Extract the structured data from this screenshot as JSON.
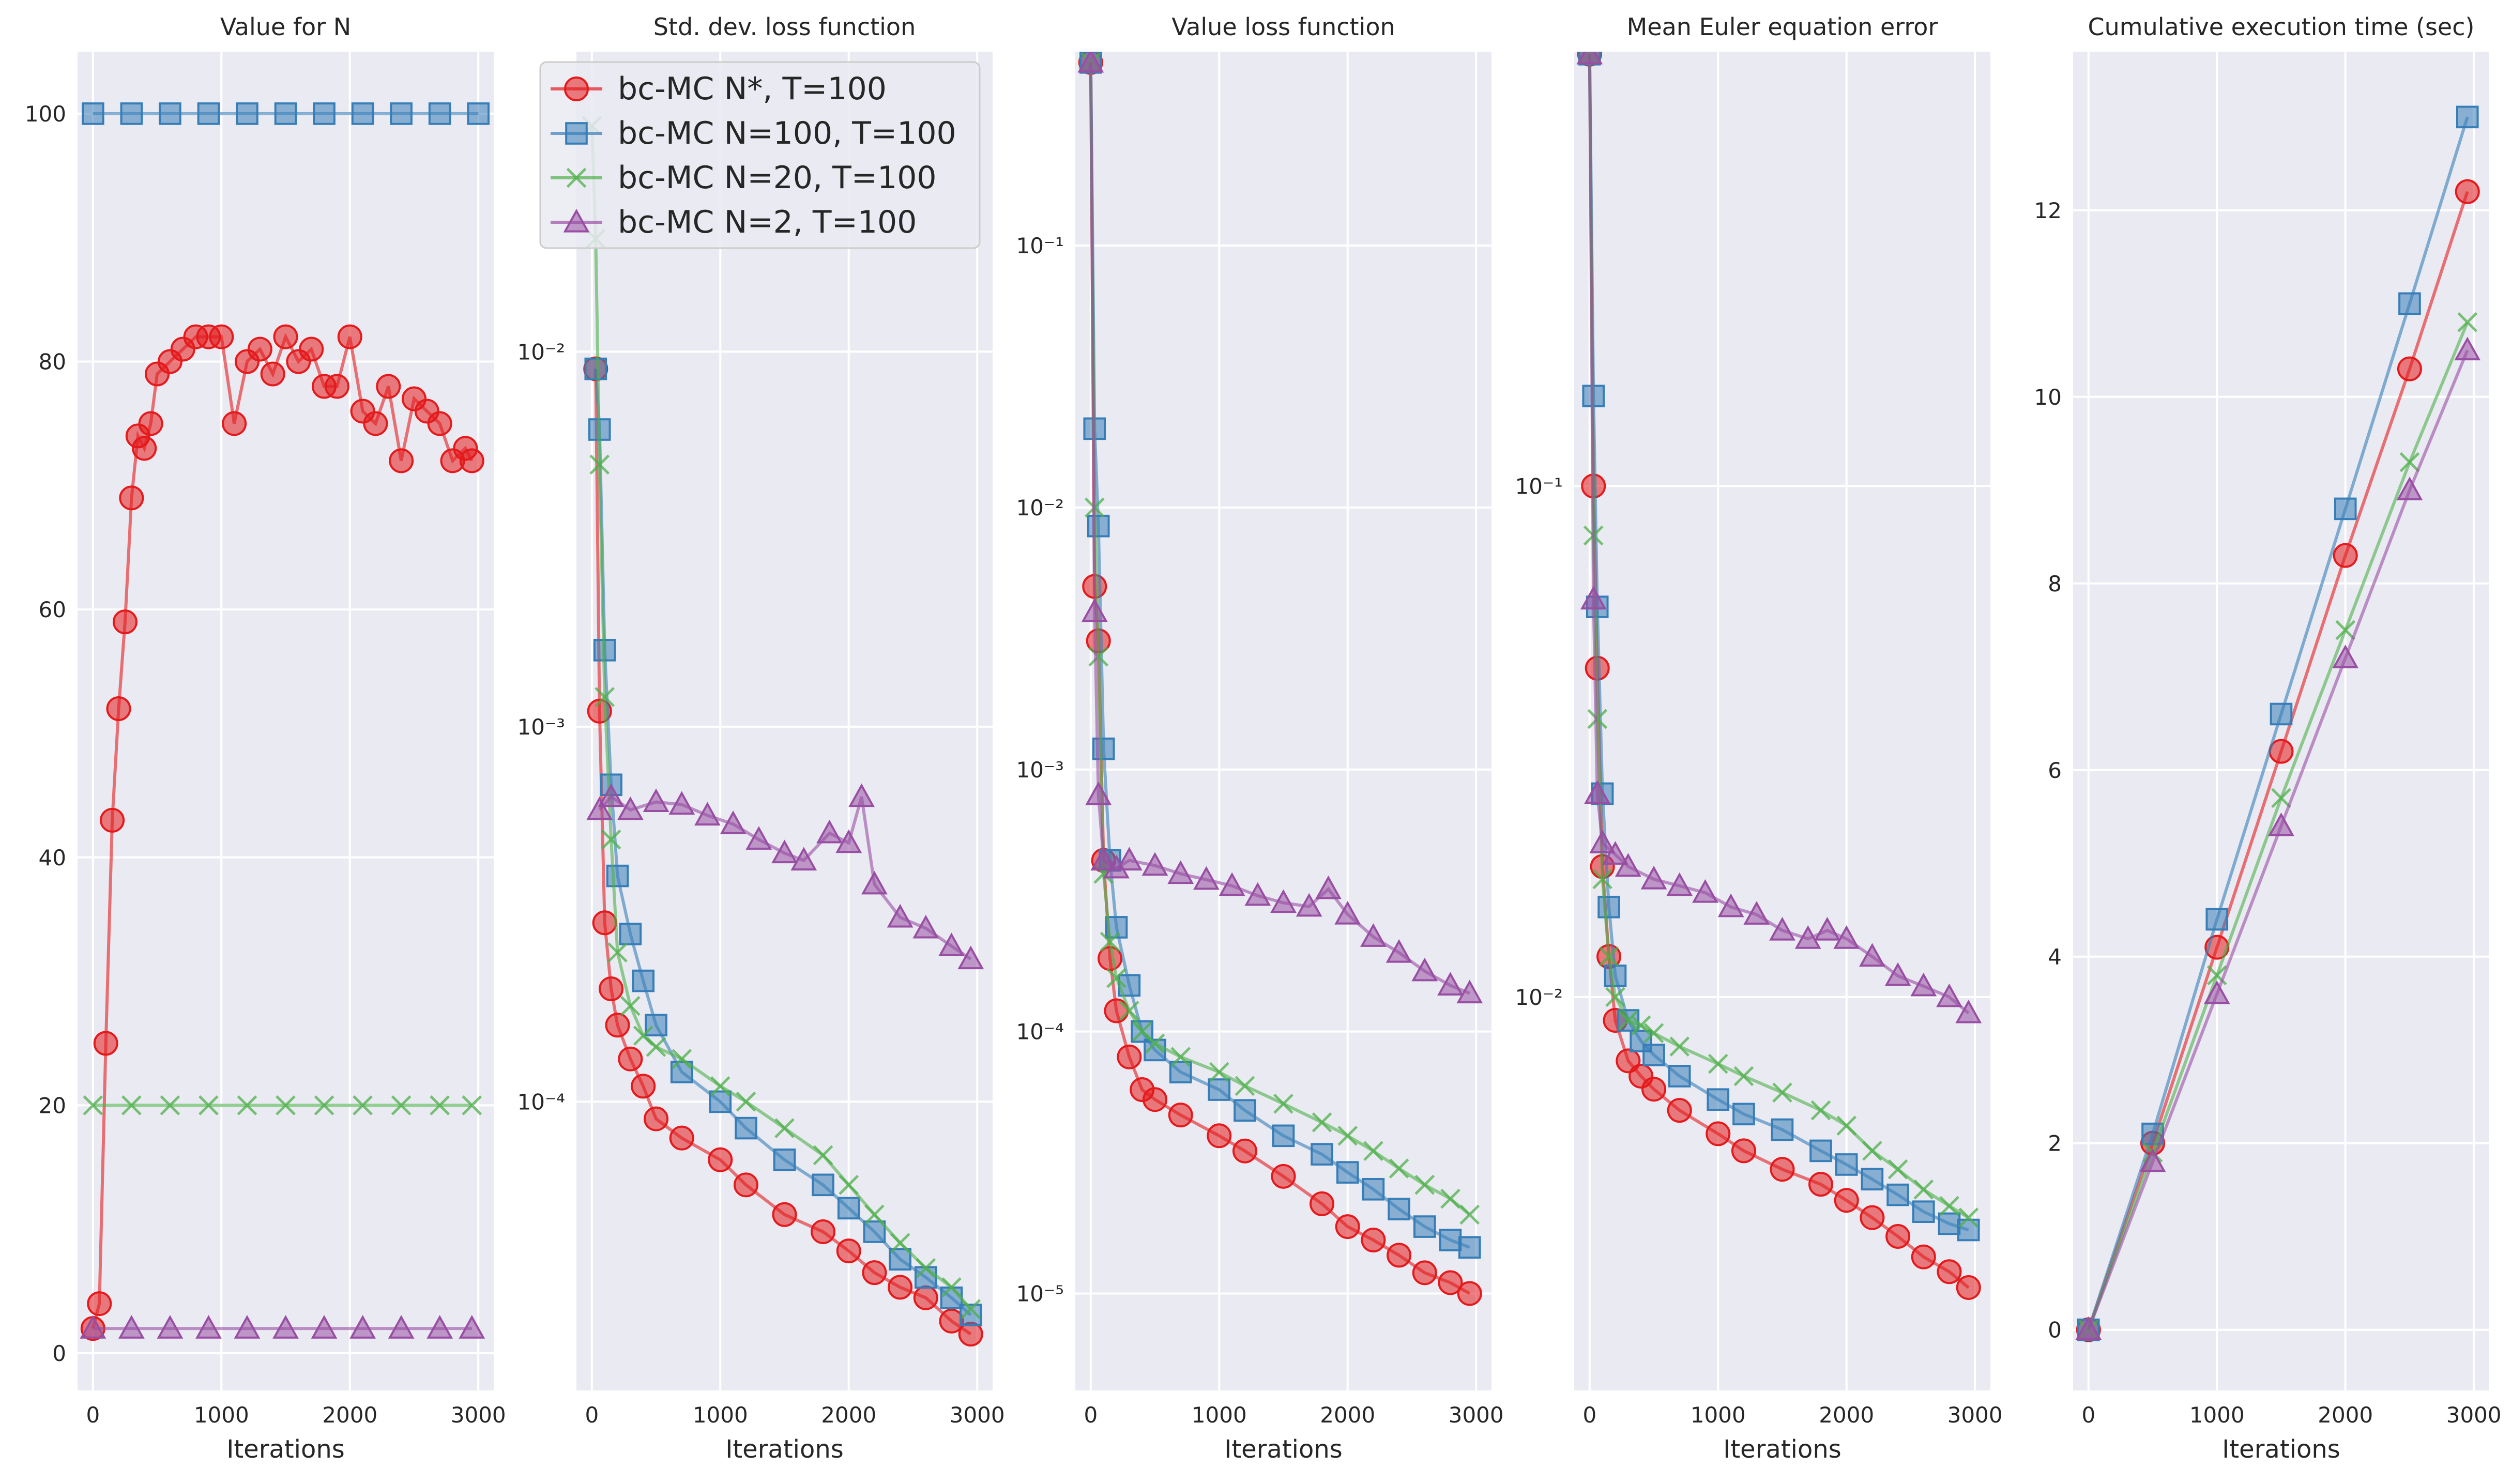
{
  "figure": {
    "legend": {
      "placement": "upper-left of second panel",
      "entries": [
        {
          "label": "bc-MC N*, T=100",
          "color": "#e41a1c",
          "marker": "circle"
        },
        {
          "label": "bc-MC N=100, T=100",
          "color": "#377eb8",
          "marker": "square"
        },
        {
          "label": "bc-MC N=20, T=100",
          "color": "#4daf4a",
          "marker": "x"
        },
        {
          "label": "bc-MC N=2, T=100",
          "color": "#984ea3",
          "marker": "triangle"
        }
      ]
    }
  },
  "chart_data": [
    {
      "type": "line",
      "title": "Value for N",
      "xlabel": "Iterations",
      "ylabel": "",
      "xlim": [
        -120,
        3120
      ],
      "ylim": [
        -3,
        105
      ],
      "yscale": "linear",
      "xticks": [
        0,
        1000,
        2000,
        3000
      ],
      "yticks": [
        0,
        20,
        40,
        60,
        80,
        100
      ],
      "ytick_labels": [
        "0",
        "20",
        "40",
        "60",
        "80",
        "100"
      ],
      "grid": true,
      "series": [
        {
          "name": "bc-MC N*, T=100",
          "x": [
            0,
            50,
            100,
            150,
            200,
            250,
            300,
            350,
            400,
            450,
            500,
            600,
            700,
            800,
            900,
            1000,
            1100,
            1200,
            1300,
            1400,
            1500,
            1600,
            1700,
            1800,
            1900,
            2000,
            2100,
            2200,
            2300,
            2400,
            2500,
            2600,
            2700,
            2800,
            2900,
            2950
          ],
          "y": [
            2,
            4,
            25,
            43,
            52,
            59,
            69,
            74,
            73,
            75,
            79,
            80,
            81,
            82,
            82,
            82,
            75,
            80,
            81,
            79,
            82,
            80,
            81,
            78,
            78,
            82,
            76,
            75,
            78,
            72,
            77,
            76,
            75,
            72,
            73,
            72
          ]
        },
        {
          "name": "bc-MC N=100, T=100",
          "x": [
            0,
            300,
            600,
            900,
            1200,
            1500,
            1800,
            2100,
            2400,
            2700,
            3000
          ],
          "y": [
            100,
            100,
            100,
            100,
            100,
            100,
            100,
            100,
            100,
            100,
            100
          ]
        },
        {
          "name": "bc-MC N=20, T=100",
          "x": [
            0,
            300,
            600,
            900,
            1200,
            1500,
            1800,
            2100,
            2400,
            2700,
            2950
          ],
          "y": [
            20,
            20,
            20,
            20,
            20,
            20,
            20,
            20,
            20,
            20,
            20
          ]
        },
        {
          "name": "bc-MC N=2, T=100",
          "x": [
            0,
            300,
            600,
            900,
            1200,
            1500,
            1800,
            2100,
            2400,
            2700,
            2950
          ],
          "y": [
            2,
            2,
            2,
            2,
            2,
            2,
            2,
            2,
            2,
            2,
            2
          ]
        }
      ]
    },
    {
      "type": "line",
      "title": "Std. dev. loss function",
      "xlabel": "Iterations",
      "ylabel": "",
      "xlim": [
        -120,
        3120
      ],
      "ylim_log10": [
        -4.77,
        -1.2
      ],
      "yscale": "log",
      "xticks": [
        0,
        1000,
        2000,
        3000
      ],
      "yticks_log10": [
        -4,
        -3,
        -2
      ],
      "ytick_labels": [
        "10⁻⁴",
        "10⁻³",
        "10⁻²"
      ],
      "grid": true,
      "series": [
        {
          "name": "bc-MC N*, T=100",
          "x": [
            30,
            60,
            100,
            150,
            200,
            300,
            400,
            500,
            700,
            1000,
            1200,
            1500,
            1800,
            2000,
            2200,
            2400,
            2600,
            2800,
            2950
          ],
          "y": [
            0.009,
            0.0011,
            0.0003,
            0.0002,
            0.00016,
            0.00013,
            0.00011,
            9e-05,
            8e-05,
            7e-05,
            6e-05,
            5e-05,
            4.5e-05,
            4e-05,
            3.5e-05,
            3.2e-05,
            3e-05,
            2.6e-05,
            2.4e-05
          ]
        },
        {
          "name": "bc-MC N=100, T=100",
          "x": [
            30,
            60,
            100,
            150,
            200,
            300,
            400,
            500,
            700,
            1000,
            1200,
            1500,
            1800,
            2000,
            2200,
            2400,
            2600,
            2800,
            2950
          ],
          "y": [
            0.009,
            0.0062,
            0.0016,
            0.0007,
            0.0004,
            0.00028,
            0.00021,
            0.00016,
            0.00012,
            0.0001,
            8.5e-05,
            7e-05,
            6e-05,
            5.2e-05,
            4.5e-05,
            3.8e-05,
            3.4e-05,
            3e-05,
            2.7e-05
          ]
        },
        {
          "name": "bc-MC N=20, T=100",
          "x": [
            0,
            30,
            60,
            100,
            150,
            200,
            300,
            400,
            500,
            700,
            1000,
            1200,
            1500,
            1800,
            2000,
            2200,
            2400,
            2600,
            2800,
            2950
          ],
          "y": [
            0.04,
            0.02,
            0.005,
            0.0012,
            0.0005,
            0.00025,
            0.00018,
            0.00015,
            0.00014,
            0.00013,
            0.00011,
            0.0001,
            8.5e-05,
            7.2e-05,
            6e-05,
            5e-05,
            4.2e-05,
            3.6e-05,
            3.2e-05,
            2.8e-05
          ]
        },
        {
          "name": "bc-MC N=2, T=100",
          "x": [
            60,
            150,
            300,
            500,
            700,
            900,
            1100,
            1300,
            1500,
            1650,
            1850,
            2000,
            2100,
            2200,
            2400,
            2600,
            2800,
            2950
          ],
          "y": [
            0.0006,
            0.00065,
            0.0006,
            0.00063,
            0.00062,
            0.00058,
            0.00055,
            0.0005,
            0.00046,
            0.00044,
            0.00052,
            0.00049,
            0.00065,
            0.00038,
            0.00031,
            0.00029,
            0.00026,
            0.00024
          ]
        }
      ]
    },
    {
      "type": "line",
      "title": "Value loss function",
      "xlabel": "Iterations",
      "ylabel": "",
      "xlim": [
        -120,
        3120
      ],
      "ylim_log10": [
        -5.37,
        -0.26
      ],
      "yscale": "log",
      "xticks": [
        0,
        1000,
        2000,
        3000
      ],
      "yticks_log10": [
        -5,
        -4,
        -3,
        -2,
        -1
      ],
      "ytick_labels": [
        "10⁻⁵",
        "10⁻⁴",
        "10⁻³",
        "10⁻²",
        "10⁻¹"
      ],
      "grid": true,
      "series": [
        {
          "name": "bc-MC N*, T=100",
          "x": [
            0,
            30,
            60,
            100,
            150,
            200,
            300,
            400,
            500,
            700,
            1000,
            1200,
            1500,
            1800,
            2000,
            2200,
            2400,
            2600,
            2800,
            2950
          ],
          "y": [
            0.5,
            0.005,
            0.0031,
            0.00045,
            0.00019,
            0.00012,
            8e-05,
            6e-05,
            5.5e-05,
            4.8e-05,
            4e-05,
            3.5e-05,
            2.8e-05,
            2.2e-05,
            1.8e-05,
            1.6e-05,
            1.4e-05,
            1.2e-05,
            1.1e-05,
            1e-05
          ]
        },
        {
          "name": "bc-MC N=100, T=100",
          "x": [
            0,
            30,
            60,
            100,
            150,
            200,
            300,
            400,
            500,
            700,
            1000,
            1200,
            1500,
            1800,
            2000,
            2200,
            2400,
            2600,
            2800,
            2950
          ],
          "y": [
            0.5,
            0.02,
            0.0085,
            0.0012,
            0.00045,
            0.00025,
            0.00015,
            0.0001,
            8.5e-05,
            7e-05,
            6e-05,
            5e-05,
            4e-05,
            3.4e-05,
            2.9e-05,
            2.5e-05,
            2.1e-05,
            1.8e-05,
            1.6e-05,
            1.5e-05
          ]
        },
        {
          "name": "bc-MC N=20, T=100",
          "x": [
            0,
            30,
            60,
            100,
            150,
            200,
            300,
            400,
            500,
            700,
            1000,
            1200,
            1500,
            1800,
            2000,
            2200,
            2400,
            2600,
            2800,
            2950
          ],
          "y": [
            0.5,
            0.01,
            0.0027,
            0.0004,
            0.00022,
            0.00016,
            0.00012,
            0.0001,
            9e-05,
            8e-05,
            7e-05,
            6.2e-05,
            5.3e-05,
            4.5e-05,
            4e-05,
            3.5e-05,
            3e-05,
            2.6e-05,
            2.3e-05,
            2e-05
          ]
        },
        {
          "name": "bc-MC N=2, T=100",
          "x": [
            0,
            30,
            60,
            100,
            200,
            300,
            500,
            700,
            900,
            1100,
            1300,
            1500,
            1700,
            1850,
            2000,
            2200,
            2400,
            2600,
            2800,
            2950
          ],
          "y": [
            0.5,
            0.004,
            0.0008,
            0.00045,
            0.00042,
            0.00045,
            0.00043,
            0.0004,
            0.00038,
            0.00036,
            0.00033,
            0.00031,
            0.0003,
            0.00035,
            0.00028,
            0.00023,
            0.0002,
            0.00017,
            0.00015,
            0.00014
          ]
        }
      ]
    },
    {
      "type": "line",
      "title": "Mean Euler equation error",
      "xlabel": "Iterations",
      "ylabel": "",
      "xlim": [
        -120,
        3120
      ],
      "ylim_log10": [
        -2.77,
        -0.15
      ],
      "yscale": "log",
      "xticks": [
        0,
        1000,
        2000,
        3000
      ],
      "yticks_log10": [
        -2,
        -1
      ],
      "ytick_labels": [
        "10⁻²",
        "10⁻¹"
      ],
      "grid": true,
      "series": [
        {
          "name": "bc-MC N*, T=100",
          "x": [
            0,
            30,
            60,
            100,
            150,
            200,
            300,
            400,
            500,
            700,
            1000,
            1200,
            1500,
            1800,
            2000,
            2200,
            2400,
            2600,
            2800,
            2950
          ],
          "y": [
            0.7,
            0.1,
            0.044,
            0.018,
            0.012,
            0.009,
            0.0075,
            0.007,
            0.0066,
            0.006,
            0.0054,
            0.005,
            0.0046,
            0.0043,
            0.004,
            0.0037,
            0.0034,
            0.0031,
            0.0029,
            0.0027
          ]
        },
        {
          "name": "bc-MC N=100, T=100",
          "x": [
            0,
            30,
            60,
            100,
            150,
            200,
            300,
            400,
            500,
            700,
            1000,
            1200,
            1500,
            1800,
            2000,
            2200,
            2400,
            2600,
            2800,
            2950
          ],
          "y": [
            0.7,
            0.15,
            0.058,
            0.025,
            0.015,
            0.011,
            0.009,
            0.0082,
            0.0077,
            0.007,
            0.0063,
            0.0059,
            0.0055,
            0.005,
            0.0047,
            0.0044,
            0.0041,
            0.0038,
            0.0036,
            0.0035
          ]
        },
        {
          "name": "bc-MC N=20, T=100",
          "x": [
            0,
            30,
            60,
            100,
            150,
            200,
            300,
            400,
            500,
            700,
            1000,
            1200,
            1500,
            1800,
            2000,
            2200,
            2400,
            2600,
            2800,
            2950
          ],
          "y": [
            0.7,
            0.08,
            0.035,
            0.017,
            0.012,
            0.01,
            0.009,
            0.0088,
            0.0085,
            0.008,
            0.0074,
            0.007,
            0.0065,
            0.006,
            0.0056,
            0.005,
            0.0046,
            0.0042,
            0.0039,
            0.0037
          ]
        },
        {
          "name": "bc-MC N=2, T=100",
          "x": [
            0,
            30,
            60,
            100,
            200,
            300,
            500,
            700,
            900,
            1100,
            1300,
            1500,
            1700,
            1850,
            2000,
            2200,
            2400,
            2600,
            2800,
            2950
          ],
          "y": [
            0.7,
            0.06,
            0.025,
            0.02,
            0.019,
            0.018,
            0.017,
            0.0165,
            0.016,
            0.015,
            0.0145,
            0.0135,
            0.013,
            0.0135,
            0.013,
            0.012,
            0.011,
            0.0105,
            0.01,
            0.0093
          ]
        }
      ]
    },
    {
      "type": "line",
      "title": "Cumulative execution time (sec)",
      "xlabel": "Iterations",
      "ylabel": "",
      "xlim": [
        -120,
        3120
      ],
      "ylim": [
        -0.65,
        13.7
      ],
      "yscale": "linear",
      "xticks": [
        0,
        1000,
        2000,
        3000
      ],
      "yticks": [
        0,
        2,
        4,
        6,
        8,
        10,
        12
      ],
      "ytick_labels": [
        "0",
        "2",
        "4",
        "6",
        "8",
        "10",
        "12"
      ],
      "grid": true,
      "series": [
        {
          "name": "bc-MC N*, T=100",
          "x": [
            0,
            500,
            1000,
            1500,
            2000,
            2500,
            2950
          ],
          "y": [
            0,
            2.0,
            4.1,
            6.2,
            8.3,
            10.3,
            12.2
          ]
        },
        {
          "name": "bc-MC N=100, T=100",
          "x": [
            0,
            500,
            1000,
            1500,
            2000,
            2500,
            2950
          ],
          "y": [
            0,
            2.1,
            4.4,
            6.6,
            8.8,
            11.0,
            13.0
          ]
        },
        {
          "name": "bc-MC N=20, T=100",
          "x": [
            0,
            500,
            1000,
            1500,
            2000,
            2500,
            2950
          ],
          "y": [
            0,
            1.9,
            3.8,
            5.7,
            7.5,
            9.3,
            10.8
          ]
        },
        {
          "name": "bc-MC N=2, T=100",
          "x": [
            0,
            500,
            1000,
            1500,
            2000,
            2500,
            2950
          ],
          "y": [
            0,
            1.8,
            3.6,
            5.4,
            7.2,
            9.0,
            10.5
          ]
        }
      ]
    }
  ]
}
